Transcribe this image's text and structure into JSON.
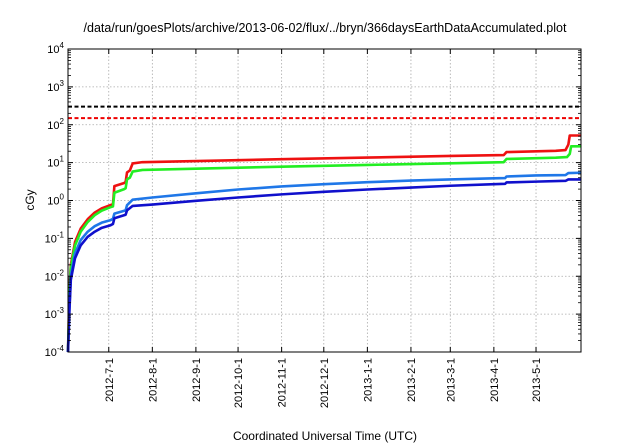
{
  "chart_data": {
    "type": "line",
    "title": "/data/run/goesPlots/archive/2013-06-02/flux/../bryn/366daysEarthDataAccumulated.plot",
    "xlabel": "Coordinated Universal Time (UTC)",
    "ylabel": "cGy",
    "y_scale": "log",
    "ylim": [
      0.0001,
      10000
    ],
    "y_ticks": [
      {
        "base": "10",
        "exp": "-4",
        "value": 0.0001
      },
      {
        "base": "10",
        "exp": "-3",
        "value": 0.001
      },
      {
        "base": "10",
        "exp": "-2",
        "value": 0.01
      },
      {
        "base": "10",
        "exp": "-1",
        "value": 0.1
      },
      {
        "base": "10",
        "exp": "0",
        "value": 1
      },
      {
        "base": "10",
        "exp": "1",
        "value": 10
      },
      {
        "base": "10",
        "exp": "2",
        "value": 100
      },
      {
        "base": "10",
        "exp": "3",
        "value": 1000
      },
      {
        "base": "10",
        "exp": "4",
        "value": 10000
      }
    ],
    "xlim": [
      "2012-06-02",
      "2013-06-02"
    ],
    "x_ticks": [
      "2012-7-1",
      "2012-8-1",
      "2012-9-1",
      "2012-10-1",
      "2012-11-1",
      "2012-12-1",
      "2013-1-1",
      "2013-2-1",
      "2013-3-1",
      "2013-4-1",
      "2013-5-1"
    ],
    "grid": true,
    "legend": "none",
    "reference_lines": [
      {
        "y": 300,
        "color": "#000000",
        "style": "dashed"
      },
      {
        "y": 150,
        "color": "#ee0000",
        "style": "dashed"
      }
    ],
    "series": [
      {
        "color": "#ee1111",
        "points": [
          [
            "2012-06-02",
            0.0001
          ],
          [
            "2012-06-03",
            0.004
          ],
          [
            "2012-06-04",
            0.02
          ],
          [
            "2012-06-07",
            0.08
          ],
          [
            "2012-06-11",
            0.18
          ],
          [
            "2012-06-16",
            0.32
          ],
          [
            "2012-06-21",
            0.48
          ],
          [
            "2012-06-26",
            0.62
          ],
          [
            "2012-07-02",
            0.75
          ],
          [
            "2012-07-04",
            0.8
          ],
          [
            "2012-07-05",
            2.4
          ],
          [
            "2012-07-12",
            2.9
          ],
          [
            "2012-07-13",
            3.1
          ],
          [
            "2012-07-14",
            5.5
          ],
          [
            "2012-07-16",
            6.2
          ],
          [
            "2012-07-18",
            9.5
          ],
          [
            "2012-07-25",
            10.3
          ],
          [
            "2012-09-01",
            11.0
          ],
          [
            "2012-11-01",
            12.3
          ],
          [
            "2013-01-01",
            13.6
          ],
          [
            "2013-03-01",
            15.0
          ],
          [
            "2013-04-08",
            15.8
          ],
          [
            "2013-04-10",
            19.0
          ],
          [
            "2013-05-15",
            20.5
          ],
          [
            "2013-05-22",
            21.5
          ],
          [
            "2013-05-24",
            30
          ],
          [
            "2013-05-25",
            52
          ],
          [
            "2013-06-02",
            52
          ]
        ]
      },
      {
        "color": "#22ee22",
        "points": [
          [
            "2012-06-02",
            0.0001
          ],
          [
            "2012-06-03",
            0.003
          ],
          [
            "2012-06-04",
            0.017
          ],
          [
            "2012-06-07",
            0.065
          ],
          [
            "2012-06-11",
            0.15
          ],
          [
            "2012-06-16",
            0.27
          ],
          [
            "2012-06-21",
            0.41
          ],
          [
            "2012-06-26",
            0.54
          ],
          [
            "2012-07-02",
            0.66
          ],
          [
            "2012-07-04",
            0.7
          ],
          [
            "2012-07-05",
            1.6
          ],
          [
            "2012-07-12",
            2.0
          ],
          [
            "2012-07-13",
            2.1
          ],
          [
            "2012-07-14",
            3.6
          ],
          [
            "2012-07-16",
            4.0
          ],
          [
            "2012-07-18",
            5.8
          ],
          [
            "2012-07-25",
            6.4
          ],
          [
            "2012-09-01",
            6.9
          ],
          [
            "2012-11-01",
            7.8
          ],
          [
            "2013-01-01",
            8.7
          ],
          [
            "2013-03-01",
            9.6
          ],
          [
            "2013-04-08",
            10.3
          ],
          [
            "2013-04-10",
            12.5
          ],
          [
            "2013-05-15",
            13.5
          ],
          [
            "2013-05-23",
            14.0
          ],
          [
            "2013-05-25",
            17
          ],
          [
            "2013-05-26",
            27
          ],
          [
            "2013-06-02",
            27
          ]
        ]
      },
      {
        "color": "#1f77e8",
        "points": [
          [
            "2012-06-02",
            0.0001
          ],
          [
            "2012-06-03",
            0.0015
          ],
          [
            "2012-06-04",
            0.01
          ],
          [
            "2012-06-07",
            0.04
          ],
          [
            "2012-06-11",
            0.09
          ],
          [
            "2012-06-16",
            0.15
          ],
          [
            "2012-06-21",
            0.21
          ],
          [
            "2012-06-26",
            0.26
          ],
          [
            "2012-07-02",
            0.3
          ],
          [
            "2012-07-04",
            0.33
          ],
          [
            "2012-07-05",
            0.45
          ],
          [
            "2012-07-13",
            0.55
          ],
          [
            "2012-07-14",
            0.75
          ],
          [
            "2012-07-18",
            1.05
          ],
          [
            "2012-08-01",
            1.2
          ],
          [
            "2012-09-01",
            1.55
          ],
          [
            "2012-10-01",
            1.95
          ],
          [
            "2012-11-01",
            2.35
          ],
          [
            "2012-12-01",
            2.7
          ],
          [
            "2013-01-01",
            3.05
          ],
          [
            "2013-02-01",
            3.35
          ],
          [
            "2013-03-01",
            3.6
          ],
          [
            "2013-04-01",
            3.85
          ],
          [
            "2013-04-09",
            3.9
          ],
          [
            "2013-04-10",
            4.3
          ],
          [
            "2013-05-01",
            4.6
          ],
          [
            "2013-05-22",
            4.7
          ],
          [
            "2013-05-24",
            5.3
          ],
          [
            "2013-06-02",
            5.4
          ]
        ]
      },
      {
        "color": "#1010cc",
        "points": [
          [
            "2012-06-02",
            0.0001
          ],
          [
            "2012-06-03",
            0.0012
          ],
          [
            "2012-06-04",
            0.008
          ],
          [
            "2012-06-07",
            0.03
          ],
          [
            "2012-06-11",
            0.065
          ],
          [
            "2012-06-16",
            0.11
          ],
          [
            "2012-06-21",
            0.15
          ],
          [
            "2012-06-26",
            0.19
          ],
          [
            "2012-07-02",
            0.22
          ],
          [
            "2012-07-04",
            0.24
          ],
          [
            "2012-07-05",
            0.34
          ],
          [
            "2012-07-13",
            0.42
          ],
          [
            "2012-07-14",
            0.55
          ],
          [
            "2012-07-18",
            0.72
          ],
          [
            "2012-08-01",
            0.78
          ],
          [
            "2012-09-01",
            0.98
          ],
          [
            "2012-10-01",
            1.2
          ],
          [
            "2012-11-01",
            1.45
          ],
          [
            "2012-12-01",
            1.7
          ],
          [
            "2013-01-01",
            1.95
          ],
          [
            "2013-02-01",
            2.2
          ],
          [
            "2013-03-01",
            2.45
          ],
          [
            "2013-04-01",
            2.7
          ],
          [
            "2013-04-09",
            2.75
          ],
          [
            "2013-04-10",
            3.0
          ],
          [
            "2013-05-01",
            3.15
          ],
          [
            "2013-05-22",
            3.3
          ],
          [
            "2013-05-24",
            3.6
          ],
          [
            "2013-06-02",
            3.6
          ]
        ]
      }
    ]
  }
}
